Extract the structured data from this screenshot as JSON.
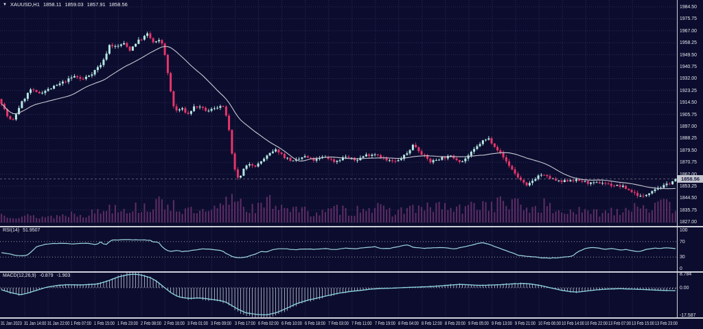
{
  "header": {
    "symbol_timeframe": "XAUUSD,H1",
    "open": "1858.11",
    "high": "1859.03",
    "low": "1857.91",
    "close": "1858.56"
  },
  "panels": {
    "rsi": {
      "name": "RSI(14)",
      "value": "51.9507",
      "axis": [
        "100",
        "70",
        "30",
        "0"
      ]
    },
    "macd": {
      "name": "MACD(12,26,9)",
      "value_macd": "-0.879",
      "value_signal": "-1.903",
      "axis": [
        "8.784",
        "0.00",
        "-17.587"
      ]
    }
  },
  "axes": {
    "current_price": "1858.56",
    "price_ticks": [
      "1984.50",
      "1975.75",
      "1967.00",
      "1958.25",
      "1949.50",
      "1940.75",
      "1932.00",
      "1923.25",
      "1914.50",
      "1905.75",
      "1897.00",
      "1888.25",
      "1879.50",
      "1870.75",
      "1862.00",
      "1853.25",
      "1844.50",
      "1835.75",
      "1827.00"
    ],
    "time_labels": [
      "31 Jan 2023",
      "31 Jan 14:00",
      "31 Jan 22:00",
      "1 Feb 07:00",
      "1 Feb 15:00",
      "1 Feb 23:00",
      "2 Feb 08:00",
      "2 Feb 16:00",
      "3 Feb 01:00",
      "3 Feb 09:00",
      "3 Feb 17:00",
      "6 Feb 02:00",
      "6 Feb 10:00",
      "6 Feb 18:00",
      "7 Feb 03:00",
      "7 Feb 11:00",
      "7 Feb 19:00",
      "8 Feb 04:00",
      "8 Feb 12:00",
      "8 Feb 20:00",
      "9 Feb 05:00",
      "9 Feb 13:00",
      "9 Feb 21:00",
      "10 Feb 06:00",
      "10 Feb 14:00",
      "10 Feb 22:00",
      "13 Feb 07:00",
      "13 Feb 15:00",
      "13 Feb 23:00"
    ]
  },
  "colors": {
    "background": "#0c0d2e",
    "grid": "#282b58",
    "bull": "#b6e9e4",
    "bear": "#e7356b",
    "ma_line": "#c9c9d4",
    "volume": "#5e2d66",
    "rsi_line": "#9fd9e3",
    "macd_signal": "#8fd8e4",
    "macd_histogram": "#c2cad9",
    "separator": "#cfd2da",
    "axis_text": "#e6e6ee",
    "price_tag_bg": "#c4c6cf",
    "price_tag_text": "#15163a",
    "bid_line": "#8b90a8"
  },
  "chart_data": [
    {
      "id": "price",
      "type": "candlestick",
      "symbol": "XAUUSD",
      "timeframe": "H1",
      "title": "XAUUSD,H1 1858.11 1859.03 1857.91 1858.56",
      "current": {
        "open": 1858.11,
        "high": 1859.03,
        "low": 1857.91,
        "close": 1858.56
      },
      "ylim": [
        1827.0,
        1984.5
      ],
      "y_tick_step": 8.75,
      "time_start": "31 Jan 2023 00:00",
      "time_end": "13 Feb 2023 23:00",
      "n_candles": 232,
      "ma_overlay": {
        "period": 24
      },
      "close_path": [
        [
          0,
          1917
        ],
        [
          0.01,
          1905
        ],
        [
          0.018,
          1900
        ],
        [
          0.03,
          1913
        ],
        [
          0.045,
          1924
        ],
        [
          0.056,
          1921
        ],
        [
          0.076,
          1925
        ],
        [
          0.096,
          1930
        ],
        [
          0.111,
          1934
        ],
        [
          0.121,
          1931
        ],
        [
          0.136,
          1936
        ],
        [
          0.152,
          1944
        ],
        [
          0.162,
          1957
        ],
        [
          0.172,
          1955
        ],
        [
          0.182,
          1958
        ],
        [
          0.192,
          1953
        ],
        [
          0.202,
          1959
        ],
        [
          0.212,
          1962
        ],
        [
          0.217,
          1965
        ],
        [
          0.227,
          1958
        ],
        [
          0.237,
          1960
        ],
        [
          0.242,
          1955
        ],
        [
          0.247,
          1938
        ],
        [
          0.253,
          1920
        ],
        [
          0.258,
          1908
        ],
        [
          0.268,
          1910
        ],
        [
          0.278,
          1906
        ],
        [
          0.288,
          1912
        ],
        [
          0.298,
          1910
        ],
        [
          0.308,
          1908
        ],
        [
          0.318,
          1911
        ],
        [
          0.328,
          1912
        ],
        [
          0.333,
          1908
        ],
        [
          0.338,
          1895
        ],
        [
          0.343,
          1875
        ],
        [
          0.348,
          1862
        ],
        [
          0.354,
          1858
        ],
        [
          0.359,
          1865
        ],
        [
          0.369,
          1870
        ],
        [
          0.379,
          1868
        ],
        [
          0.389,
          1873
        ],
        [
          0.399,
          1877
        ],
        [
          0.409,
          1880
        ],
        [
          0.419,
          1875
        ],
        [
          0.434,
          1871
        ],
        [
          0.449,
          1875
        ],
        [
          0.465,
          1872
        ],
        [
          0.48,
          1875
        ],
        [
          0.495,
          1871
        ],
        [
          0.51,
          1875
        ],
        [
          0.525,
          1872
        ],
        [
          0.54,
          1876
        ],
        [
          0.556,
          1877
        ],
        [
          0.571,
          1872
        ],
        [
          0.586,
          1871
        ],
        [
          0.601,
          1877
        ],
        [
          0.611,
          1884
        ],
        [
          0.621,
          1878
        ],
        [
          0.636,
          1871
        ],
        [
          0.652,
          1874
        ],
        [
          0.667,
          1875
        ],
        [
          0.682,
          1871
        ],
        [
          0.697,
          1878
        ],
        [
          0.712,
          1886
        ],
        [
          0.722,
          1888
        ],
        [
          0.732,
          1882
        ],
        [
          0.747,
          1872
        ],
        [
          0.763,
          1861
        ],
        [
          0.778,
          1853
        ],
        [
          0.788,
          1858
        ],
        [
          0.798,
          1862
        ],
        [
          0.813,
          1859
        ],
        [
          0.828,
          1856
        ],
        [
          0.843,
          1858
        ],
        [
          0.859,
          1857
        ],
        [
          0.874,
          1855
        ],
        [
          0.889,
          1856
        ],
        [
          0.904,
          1854
        ],
        [
          0.919,
          1853
        ],
        [
          0.934,
          1849
        ],
        [
          0.949,
          1845
        ],
        [
          0.965,
          1851
        ],
        [
          0.98,
          1853
        ],
        [
          1,
          1858.56
        ]
      ]
    },
    {
      "id": "volume",
      "type": "bar",
      "parent": "price",
      "envelope": [
        [
          0,
          12
        ],
        [
          0.03,
          10
        ],
        [
          0.06,
          8
        ],
        [
          0.09,
          10
        ],
        [
          0.11,
          14
        ],
        [
          0.13,
          12
        ],
        [
          0.15,
          18
        ],
        [
          0.17,
          25
        ],
        [
          0.19,
          20
        ],
        [
          0.21,
          22
        ],
        [
          0.23,
          25
        ],
        [
          0.25,
          30
        ],
        [
          0.27,
          18
        ],
        [
          0.29,
          15
        ],
        [
          0.31,
          14
        ],
        [
          0.33,
          25
        ],
        [
          0.348,
          42
        ],
        [
          0.36,
          25
        ],
        [
          0.38,
          20
        ],
        [
          0.4,
          30
        ],
        [
          0.42,
          25
        ],
        [
          0.44,
          18
        ],
        [
          0.46,
          15
        ],
        [
          0.48,
          14
        ],
        [
          0.5,
          20
        ],
        [
          0.52,
          15
        ],
        [
          0.54,
          25
        ],
        [
          0.565,
          18
        ],
        [
          0.585,
          15
        ],
        [
          0.605,
          22
        ],
        [
          0.625,
          18
        ],
        [
          0.645,
          25
        ],
        [
          0.665,
          20
        ],
        [
          0.685,
          18
        ],
        [
          0.705,
          28
        ],
        [
          0.725,
          25
        ],
        [
          0.745,
          30
        ],
        [
          0.765,
          25
        ],
        [
          0.785,
          20
        ],
        [
          0.805,
          25
        ],
        [
          0.825,
          15
        ],
        [
          0.845,
          18
        ],
        [
          0.865,
          14
        ],
        [
          0.885,
          15
        ],
        [
          0.905,
          18
        ],
        [
          0.925,
          20
        ],
        [
          0.945,
          28
        ],
        [
          0.965,
          22
        ],
        [
          0.985,
          25
        ],
        [
          1,
          18
        ]
      ]
    },
    {
      "id": "rsi",
      "type": "line",
      "label": "RSI(14)",
      "current": 51.9507,
      "range": [
        0,
        100
      ],
      "levels": [
        70,
        30
      ],
      "path": [
        [
          0,
          42
        ],
        [
          0.015,
          38
        ],
        [
          0.025,
          33
        ],
        [
          0.04,
          34
        ],
        [
          0.055,
          58
        ],
        [
          0.07,
          64
        ],
        [
          0.09,
          66
        ],
        [
          0.11,
          64
        ],
        [
          0.13,
          66
        ],
        [
          0.142,
          62
        ],
        [
          0.15,
          70
        ],
        [
          0.155,
          60
        ],
        [
          0.165,
          74
        ],
        [
          0.19,
          75
        ],
        [
          0.21,
          75
        ],
        [
          0.222,
          73
        ],
        [
          0.228,
          68
        ],
        [
          0.233,
          71
        ],
        [
          0.24,
          55
        ],
        [
          0.25,
          45
        ],
        [
          0.262,
          47
        ],
        [
          0.27,
          44
        ],
        [
          0.285,
          47
        ],
        [
          0.3,
          52
        ],
        [
          0.315,
          49
        ],
        [
          0.328,
          47
        ],
        [
          0.335,
          38
        ],
        [
          0.345,
          30
        ],
        [
          0.355,
          28
        ],
        [
          0.365,
          31
        ],
        [
          0.375,
          36
        ],
        [
          0.385,
          44
        ],
        [
          0.395,
          44
        ],
        [
          0.405,
          50
        ],
        [
          0.42,
          52
        ],
        [
          0.435,
          49
        ],
        [
          0.45,
          51
        ],
        [
          0.465,
          50
        ],
        [
          0.48,
          52
        ],
        [
          0.495,
          49
        ],
        [
          0.51,
          53
        ],
        [
          0.525,
          51
        ],
        [
          0.54,
          55
        ],
        [
          0.555,
          57
        ],
        [
          0.562,
          52
        ],
        [
          0.575,
          52
        ],
        [
          0.59,
          58
        ],
        [
          0.602,
          62
        ],
        [
          0.61,
          56
        ],
        [
          0.625,
          52
        ],
        [
          0.64,
          54
        ],
        [
          0.655,
          55
        ],
        [
          0.67,
          51
        ],
        [
          0.685,
          56
        ],
        [
          0.7,
          62
        ],
        [
          0.712,
          68
        ],
        [
          0.72,
          64
        ],
        [
          0.73,
          58
        ],
        [
          0.745,
          48
        ],
        [
          0.755,
          42
        ],
        [
          0.765,
          35
        ],
        [
          0.775,
          32
        ],
        [
          0.79,
          30
        ],
        [
          0.8,
          28
        ],
        [
          0.81,
          27
        ],
        [
          0.825,
          28
        ],
        [
          0.835,
          30
        ],
        [
          0.845,
          32
        ],
        [
          0.855,
          45
        ],
        [
          0.865,
          52
        ],
        [
          0.875,
          55
        ],
        [
          0.885,
          53
        ],
        [
          0.895,
          50
        ],
        [
          0.905,
          52
        ],
        [
          0.915,
          48
        ],
        [
          0.925,
          50
        ],
        [
          0.935,
          46
        ],
        [
          0.945,
          44
        ],
        [
          0.955,
          50
        ],
        [
          0.965,
          53
        ],
        [
          0.975,
          52
        ],
        [
          0.985,
          54
        ],
        [
          1,
          52
        ]
      ]
    },
    {
      "id": "macd",
      "type": "macd",
      "label": "MACD(12,26,9)",
      "macd_current": -0.879,
      "signal_current": -1.903,
      "ylim": [
        -17.587,
        8.784
      ],
      "signal_path": [
        [
          0,
          -1
        ],
        [
          0.015,
          -3
        ],
        [
          0.03,
          -4.5
        ],
        [
          0.04,
          -3.5
        ],
        [
          0.055,
          -1.5
        ],
        [
          0.07,
          0.5
        ],
        [
          0.085,
          1.5
        ],
        [
          0.1,
          2
        ],
        [
          0.115,
          1.8
        ],
        [
          0.13,
          2
        ],
        [
          0.145,
          2.5
        ],
        [
          0.16,
          4.5
        ],
        [
          0.175,
          7
        ],
        [
          0.19,
          8.5
        ],
        [
          0.2,
          8.7
        ],
        [
          0.21,
          8
        ],
        [
          0.222,
          6.5
        ],
        [
          0.232,
          4
        ],
        [
          0.242,
          0.5
        ],
        [
          0.252,
          -3
        ],
        [
          0.262,
          -5.5
        ],
        [
          0.272,
          -6.5
        ],
        [
          0.282,
          -6.8
        ],
        [
          0.292,
          -6.5
        ],
        [
          0.303,
          -6.8
        ],
        [
          0.313,
          -7.5
        ],
        [
          0.323,
          -8
        ],
        [
          0.333,
          -9
        ],
        [
          0.343,
          -11.5
        ],
        [
          0.353,
          -14
        ],
        [
          0.363,
          -16
        ],
        [
          0.378,
          -17
        ],
        [
          0.393,
          -17.4
        ],
        [
          0.408,
          -16
        ],
        [
          0.424,
          -13
        ],
        [
          0.439,
          -10
        ],
        [
          0.454,
          -8
        ],
        [
          0.469,
          -6.5
        ],
        [
          0.484,
          -5
        ],
        [
          0.5,
          -3.5
        ],
        [
          0.515,
          -2.5
        ],
        [
          0.53,
          -1.8
        ],
        [
          0.545,
          -1
        ],
        [
          0.56,
          -0.5
        ],
        [
          0.575,
          -0.3
        ],
        [
          0.59,
          0
        ],
        [
          0.606,
          0.3
        ],
        [
          0.62,
          0.5
        ],
        [
          0.636,
          0.8
        ],
        [
          0.65,
          1.2
        ],
        [
          0.667,
          1.8
        ],
        [
          0.68,
          2.2
        ],
        [
          0.697,
          1.8
        ],
        [
          0.71,
          1.5
        ],
        [
          0.727,
          1.8
        ],
        [
          0.74,
          2
        ],
        [
          0.757,
          2.5
        ],
        [
          0.773,
          2.8
        ],
        [
          0.783,
          2.5
        ],
        [
          0.798,
          1.5
        ],
        [
          0.813,
          0
        ],
        [
          0.828,
          -1.5
        ],
        [
          0.843,
          -2.5
        ],
        [
          0.853,
          -2.8
        ],
        [
          0.868,
          -2
        ],
        [
          0.884,
          -1.2
        ],
        [
          0.9,
          -0.8
        ],
        [
          0.914,
          -0.6
        ],
        [
          0.93,
          -0.8
        ],
        [
          0.944,
          -1
        ],
        [
          0.96,
          -1.3
        ],
        [
          0.975,
          -1.6
        ],
        [
          1,
          -1.9
        ]
      ]
    }
  ]
}
